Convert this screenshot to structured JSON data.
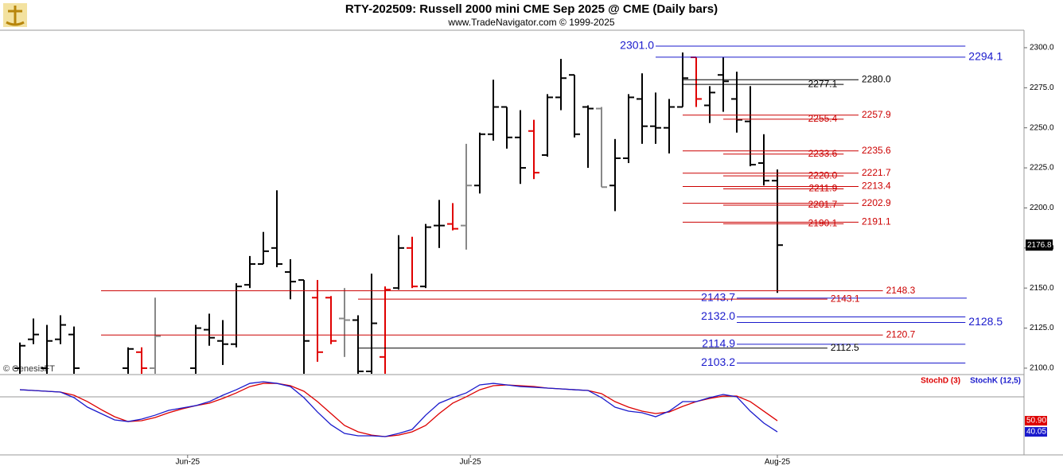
{
  "chart_data": [
    {
      "type": "ohlc",
      "title": "RTY-202509:  Russell 2000 mini CME Sep 2025 @ CME  (Daily bars)",
      "subtitle": "www.TradeNavigator.com © 1999-2025",
      "watermark": "© GenesisFT",
      "ylim": [
        2096.5,
        2310.9
      ],
      "yticks": [
        {
          "value": 2100,
          "label": "2100.0"
        },
        {
          "value": 2125,
          "label": "2125.0"
        },
        {
          "value": 2150,
          "label": "2150.0"
        },
        {
          "value": 2175,
          "label": "2175.0"
        },
        {
          "value": 2200,
          "label": "2200.0"
        },
        {
          "value": 2225,
          "label": "2225.0"
        },
        {
          "value": 2250,
          "label": "2250.0"
        },
        {
          "value": 2275,
          "label": "2275.0"
        },
        {
          "value": 2300,
          "label": "2300.0"
        }
      ],
      "xticks": [
        {
          "value": 12.4,
          "label": "Jun-25"
        },
        {
          "value": 33.3,
          "label": "Jul-25"
        },
        {
          "value": 56,
          "label": "Aug-25"
        }
      ],
      "ohlc": [
        [
          2100,
          2116,
          2095,
          2114
        ],
        [
          2118,
          2131,
          2115,
          2121
        ],
        [
          2100,
          2127,
          2096,
          2117
        ],
        [
          2118,
          2133,
          2115,
          2127
        ],
        [
          2121,
          2126,
          2095,
          2100
        ],
        null,
        null,
        null,
        [
          2100,
          2113,
          2095,
          2112
        ],
        [
          2110,
          2113,
          2095,
          2100
        ],
        [
          2100,
          2144,
          2095,
          2120
        ],
        null,
        null,
        [
          2100,
          2127,
          2096,
          2125
        ],
        [
          2124,
          2134,
          2114,
          2119
        ],
        [
          2117,
          2130,
          2102,
          2115
        ],
        [
          2115,
          2153,
          2113,
          2151
        ],
        [
          2152,
          2170,
          2150,
          2165
        ],
        [
          2165,
          2185,
          2165,
          2173
        ],
        [
          2175,
          2211,
          2163,
          2165
        ],
        [
          2160,
          2168,
          2143,
          2154
        ],
        [
          2155,
          2155,
          2095,
          2117
        ],
        [
          2144,
          2155,
          2104,
          2110
        ],
        [
          2144,
          2145,
          2115,
          2117
        ],
        [
          2131,
          2150,
          2107,
          2130
        ],
        [
          2130,
          2133,
          2096,
          2098
        ],
        [
          2098,
          2159,
          2095,
          2128
        ],
        [
          2107,
          2151,
          2095,
          2149
        ],
        [
          2150,
          2183,
          2149,
          2175
        ],
        [
          2175,
          2182,
          2150,
          2151
        ],
        [
          2151,
          2190,
          2150,
          2188
        ],
        [
          2189,
          2205,
          2175,
          2189
        ],
        [
          2190,
          2203,
          2186,
          2187
        ],
        [
          2189,
          2240,
          2174,
          2214
        ],
        [
          2214,
          2247,
          2209,
          2246
        ],
        [
          2246,
          2280,
          2242,
          2263
        ],
        [
          2263,
          2263,
          2237,
          2244
        ],
        [
          2244,
          2261,
          2215,
          2225
        ],
        [
          2248,
          2255,
          2218,
          2222
        ],
        [
          2233,
          2271,
          2232,
          2269
        ],
        [
          2269,
          2293,
          2261,
          2281
        ],
        [
          2283,
          2283,
          2244,
          2246
        ],
        [
          2263,
          2264,
          2225,
          2262
        ],
        [
          2262,
          2263,
          2213,
          2213
        ],
        [
          2214,
          2243,
          2198,
          2231
        ],
        [
          2231,
          2271,
          2228,
          2269
        ],
        [
          2268,
          2284,
          2240,
          2251
        ],
        [
          2251,
          2272,
          2240,
          2250
        ],
        [
          2250,
          2268,
          2234,
          2263
        ],
        [
          2263,
          2297,
          2263,
          2281
        ],
        [
          2294,
          2294,
          2263,
          2268
        ],
        [
          2264,
          2276,
          2253,
          2272
        ],
        [
          2283,
          2294,
          2260,
          2279
        ],
        [
          2268,
          2285,
          2247,
          2255
        ],
        [
          2254,
          2276,
          2226,
          2227
        ],
        [
          2228,
          2246,
          2214,
          2217
        ],
        [
          2217,
          2224,
          2147,
          2176.8
        ]
      ],
      "bar_colors": [
        "#000",
        "#000",
        "#000",
        "#000",
        "#000",
        null,
        null,
        null,
        "#000",
        "#e00000",
        "#888",
        null,
        null,
        "#000",
        "#000",
        "#000",
        "#000",
        "#000",
        "#000",
        "#000",
        "#000",
        "#000",
        "#e00000",
        "#e00000",
        "#888",
        "#000",
        "#000",
        "#e00000",
        "#000",
        "#e00000",
        "#000",
        "#000",
        "#e00000",
        "#888",
        "#000",
        "#000",
        "#000",
        "#000",
        "#e00000",
        "#000",
        "#000",
        "#000",
        "#000",
        "#888",
        "#000",
        "#000",
        "#000",
        "#000",
        "#000",
        "#000",
        "#e00000",
        "#000",
        "#000",
        "#000",
        "#000",
        "#000",
        "#000"
      ],
      "levels": [
        {
          "value": 2301.0,
          "label": "2301.0",
          "color": "#1a1acc",
          "span": [
            47,
            69.9
          ],
          "label_side": "left"
        },
        {
          "value": 2294.1,
          "label": "2294.1",
          "color": "#1a1acc",
          "span": [
            47,
            69.9
          ],
          "label_side": "right"
        },
        {
          "value": 2280.0,
          "label": "2280.0",
          "color": "#000",
          "span": [
            49,
            62
          ],
          "label_side": "right"
        },
        {
          "value": 2277.1,
          "label": "2277.1",
          "color": "#000",
          "span": [
            49,
            60.9
          ],
          "label_side": "inside"
        },
        {
          "value": 2257.9,
          "label": "2257.9",
          "color": "#cc0000",
          "span": [
            49,
            62
          ],
          "label_side": "right"
        },
        {
          "value": 2255.4,
          "label": "2255.4",
          "color": "#cc0000",
          "span": [
            52,
            60.9
          ],
          "label_side": "inside"
        },
        {
          "value": 2235.6,
          "label": "2235.6",
          "color": "#cc0000",
          "span": [
            49,
            62
          ],
          "label_side": "right"
        },
        {
          "value": 2233.6,
          "label": "2233.6",
          "color": "#cc0000",
          "span": [
            52,
            60.9
          ],
          "label_side": "inside"
        },
        {
          "value": 2221.7,
          "label": "2221.7",
          "color": "#cc0000",
          "span": [
            49,
            62
          ],
          "label_side": "right"
        },
        {
          "value": 2220.0,
          "label": "2220.0",
          "color": "#cc0000",
          "span": [
            52,
            60.9
          ],
          "label_side": "inside"
        },
        {
          "value": 2213.4,
          "label": "2213.4",
          "color": "#cc0000",
          "span": [
            49,
            62
          ],
          "label_side": "right"
        },
        {
          "value": 2211.9,
          "label": "2211.9",
          "color": "#cc0000",
          "span": [
            52,
            60.9
          ],
          "label_side": "inside"
        },
        {
          "value": 2202.9,
          "label": "2202.9",
          "color": "#cc0000",
          "span": [
            49,
            62
          ],
          "label_side": "right"
        },
        {
          "value": 2201.7,
          "label": "2201.7",
          "color": "#cc0000",
          "span": [
            52,
            60.9
          ],
          "label_side": "inside"
        },
        {
          "value": 2191.1,
          "label": "2191.1",
          "color": "#cc0000",
          "span": [
            49,
            62
          ],
          "label_side": "right"
        },
        {
          "value": 2190.1,
          "label": "2190.1",
          "color": "#cc0000",
          "span": [
            52,
            60.9
          ],
          "label_side": "inside"
        },
        {
          "value": 2148.3,
          "label": "2148.3",
          "color": "#cc0000",
          "span": [
            6,
            63.8
          ],
          "label_side": "right"
        },
        {
          "value": 2143.7,
          "label": "2143.7",
          "color": "#1a1acc",
          "span": [
            53,
            70
          ],
          "label_side": "left"
        },
        {
          "value": 2143.1,
          "label": "2143.1",
          "color": "#cc0000",
          "span": [
            25,
            59.7
          ],
          "label_side": "right"
        },
        {
          "value": 2132.0,
          "label": "2132.0",
          "color": "#1a1acc",
          "span": [
            53,
            69.9
          ],
          "label_side": "left"
        },
        {
          "value": 2128.5,
          "label": "2128.5",
          "color": "#1a1acc",
          "span": [
            53,
            69.9
          ],
          "label_side": "right"
        },
        {
          "value": 2120.7,
          "label": "2120.7",
          "color": "#cc0000",
          "span": [
            6,
            63.8
          ],
          "label_side": "right"
        },
        {
          "value": 2114.9,
          "label": "2114.9",
          "color": "#1a1acc",
          "span": [
            53,
            69.9
          ],
          "label_side": "left"
        },
        {
          "value": 2112.5,
          "label": "2112.5",
          "color": "#000",
          "span": [
            25,
            59.7
          ],
          "label_side": "right"
        },
        {
          "value": 2103.2,
          "label": "2103.2",
          "color": "#1a1acc",
          "span": [
            53,
            69.9
          ],
          "label_side": "left"
        }
      ]
    },
    {
      "type": "line",
      "ylim": [
        17.6,
        95.1
      ],
      "series": [
        {
          "name": "StochD (3)",
          "color": "#dd0000",
          "last_label": "50.90",
          "values": [
            81.1,
            80.4,
            79.6,
            78.8,
            75.7,
            69.5,
            61.8,
            54.8,
            50.1,
            50.9,
            54.0,
            58.7,
            62.5,
            65.6,
            68.0,
            72.6,
            78.0,
            84.2,
            87.3,
            87.3,
            85.0,
            79.6,
            69.5,
            57.9,
            46.3,
            40.1,
            36.9,
            35.4,
            36.9,
            40.1,
            46.3,
            57.9,
            68.0,
            74.2,
            81.1,
            85.0,
            85.8,
            85.0,
            84.2,
            82.7,
            81.9,
            81.1,
            80.4,
            77.3,
            69.5,
            64.1,
            60.2,
            57.9,
            59.4,
            64.9,
            69.5,
            72.6,
            74.9,
            74.9,
            69.5,
            60.2,
            50.9
          ]
        },
        {
          "name": "StochK (12,5)",
          "color": "#1a1acc",
          "last_label": "40.05",
          "values": [
            81.1,
            80.4,
            79.6,
            78.8,
            73.4,
            64.1,
            57.9,
            51.7,
            50.1,
            52.5,
            56.3,
            61.0,
            63.3,
            65.6,
            69.5,
            75.7,
            81.1,
            87.3,
            88.9,
            87.3,
            84.2,
            73.4,
            59.4,
            47.0,
            38.5,
            36.2,
            36.2,
            35.4,
            38.5,
            42.4,
            56.3,
            68.0,
            73.4,
            78.0,
            85.8,
            87.3,
            85.8,
            84.2,
            83.5,
            82.7,
            81.9,
            81.1,
            80.4,
            73.4,
            64.1,
            60.2,
            58.7,
            54.8,
            60.2,
            69.5,
            69.5,
            73.4,
            76.5,
            74.2,
            60.2,
            48.6,
            40.05
          ]
        }
      ]
    }
  ]
}
